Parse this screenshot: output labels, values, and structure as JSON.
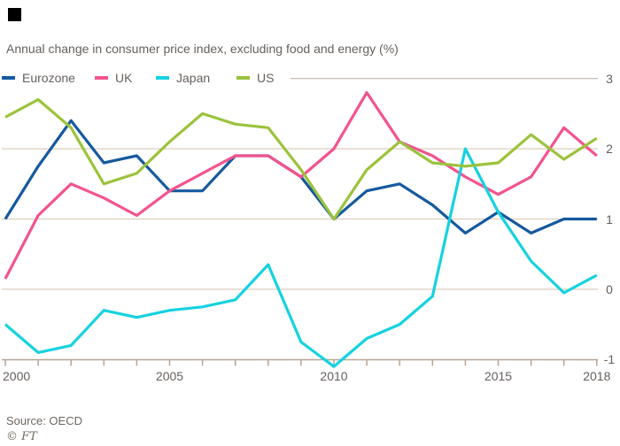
{
  "subtitle": "Annual change in consumer price index, excluding food and energy (%)",
  "source": "Source: OECD",
  "credit": "© FT",
  "colors": {
    "background": "#ffffff",
    "text": "#66605c",
    "muted_text": "#6e6760",
    "gridline": "#ddcdbe",
    "top_gridline": "#cbc0b6",
    "axis": "#b7a593",
    "eurozone": "#15599e",
    "uk": "#f2538f",
    "japan": "#15d2e0",
    "us": "#9bc33c"
  },
  "legend": [
    {
      "label": "Eurozone",
      "color": "#15599e"
    },
    {
      "label": "UK",
      "color": "#f2538f"
    },
    {
      "label": "Japan",
      "color": "#15d2e0"
    },
    {
      "label": "US",
      "color": "#9bc33c"
    }
  ],
  "chart_data": {
    "type": "line",
    "title": "Annual change in consumer price index, excluding food and energy (%)",
    "x": [
      2000,
      2001,
      2002,
      2003,
      2004,
      2005,
      2006,
      2007,
      2008,
      2009,
      2010,
      2011,
      2012,
      2013,
      2014,
      2015,
      2016,
      2017,
      2018
    ],
    "series": [
      {
        "name": "Eurozone",
        "color": "#15599e",
        "values": [
          1.0,
          1.75,
          2.4,
          1.8,
          1.9,
          1.4,
          1.4,
          1.9,
          1.9,
          1.6,
          1.0,
          1.4,
          1.5,
          1.2,
          0.8,
          1.1,
          0.8,
          1.0,
          1.0
        ]
      },
      {
        "name": "UK",
        "color": "#f2538f",
        "values": [
          0.15,
          1.05,
          1.5,
          1.3,
          1.05,
          1.4,
          1.65,
          1.9,
          1.9,
          1.6,
          2.0,
          2.8,
          2.1,
          1.9,
          1.6,
          1.35,
          1.6,
          2.3,
          1.9
        ]
      },
      {
        "name": "Japan",
        "color": "#15d2e0",
        "values": [
          -0.5,
          -0.9,
          -0.8,
          -0.3,
          -0.4,
          -0.3,
          -0.25,
          -0.15,
          0.35,
          -0.75,
          -1.1,
          -0.7,
          -0.5,
          -0.1,
          2.0,
          1.1,
          0.4,
          -0.05,
          0.2
        ]
      },
      {
        "name": "US",
        "color": "#9bc33c",
        "values": [
          2.45,
          2.7,
          2.3,
          1.5,
          1.65,
          2.1,
          2.5,
          2.35,
          2.3,
          1.7,
          1.0,
          1.7,
          2.1,
          1.8,
          1.75,
          1.8,
          2.2,
          1.85,
          2.15
        ]
      }
    ],
    "ylim": [
      -1,
      3
    ],
    "y_ticks": [
      3,
      2,
      1,
      0,
      -1
    ],
    "x_tick_labels": [
      2000,
      2005,
      2010,
      2015,
      2018
    ],
    "x_tick_every_year": true,
    "grid": "horizontal",
    "legend_position": "top-left",
    "y_axis_side": "right",
    "xlabel": "",
    "ylabel": ""
  }
}
